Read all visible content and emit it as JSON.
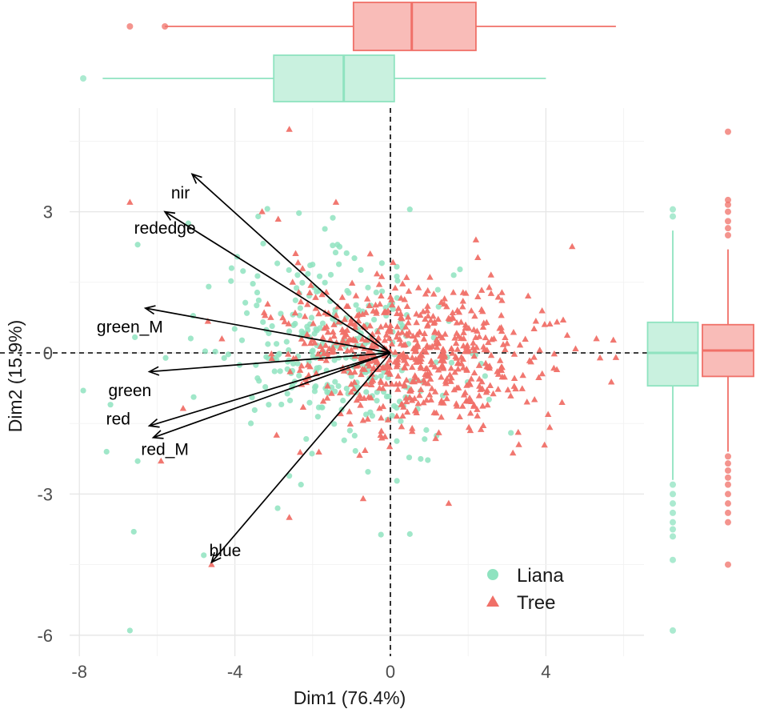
{
  "chart_data": {
    "type": "scatter",
    "title": "",
    "xlabel": "Dim1 (76.4%)",
    "ylabel": "Dim2 (15.9%)",
    "xlim": [
      -8.1,
      6.1
    ],
    "ylim": [
      -6.1,
      5.0
    ],
    "x_ticks": [
      {
        "value": -8,
        "label": "-8"
      },
      {
        "value": -4,
        "label": "-4"
      },
      {
        "value": 0,
        "label": "0"
      },
      {
        "value": 4,
        "label": "4"
      }
    ],
    "y_ticks": [
      {
        "value": 3,
        "label": "3"
      },
      {
        "value": 0,
        "label": "0"
      },
      {
        "value": -3,
        "label": "-3"
      },
      {
        "value": -6,
        "label": "-6"
      }
    ],
    "grid": true,
    "reference_lines": {
      "x": 0,
      "y": 0,
      "style": "dashed"
    },
    "legend": {
      "position": "bottom-right",
      "entries": [
        {
          "name": "Liana",
          "shape": "circle",
          "color": "#8fe3c0"
        },
        {
          "name": "Tree",
          "shape": "triangle",
          "color": "#f07068"
        }
      ]
    },
    "series": [
      {
        "name": "Liana",
        "shape": "circle",
        "color": "#8fe3c0",
        "box_dim1": {
          "min": -7.4,
          "q1": -3.0,
          "median": -1.2,
          "q3": 0.1,
          "max": 4.0,
          "outliers": [
            -7.9
          ]
        },
        "box_dim2": {
          "min": -2.7,
          "q1": -0.7,
          "median": 0.0,
          "q3": 0.65,
          "max": 2.6,
          "outliers": [
            2.9,
            3.05,
            -2.8,
            -3.0,
            -3.2,
            -3.4,
            -3.6,
            -3.75,
            -3.9,
            -4.4,
            -5.9
          ]
        },
        "highlighted_points": [
          {
            "x": -6.5,
            "y": 2.3
          },
          {
            "x": -7.2,
            "y": -1.1
          },
          {
            "x": -7.9,
            "y": -0.8
          },
          {
            "x": -7.3,
            "y": -2.1
          },
          {
            "x": -6.5,
            "y": -2.3
          },
          {
            "x": -6.6,
            "y": -3.8
          },
          {
            "x": -6.7,
            "y": -5.9
          },
          {
            "x": -4.8,
            "y": -4.3
          },
          {
            "x": -3.4,
            "y": 2.9
          },
          {
            "x": 0.5,
            "y": 3.05
          },
          {
            "x": 0.5,
            "y": -3.85
          },
          {
            "x": 3.1,
            "y": -1.7
          },
          {
            "x": -2.3,
            "y": -2.8
          },
          {
            "x": -2.9,
            "y": -3.3
          }
        ]
      },
      {
        "name": "Tree",
        "shape": "triangle",
        "color": "#f07068",
        "box_dim1": {
          "min": -5.8,
          "q1": -0.95,
          "median": 0.55,
          "q3": 2.2,
          "max": 5.8,
          "outliers": [
            -6.7,
            -5.8
          ]
        },
        "box_dim2": {
          "min": -2.1,
          "q1": -0.5,
          "median": 0.05,
          "q3": 0.6,
          "max": 2.2,
          "outliers": [
            3.25,
            3.15,
            3.0,
            2.8,
            2.65,
            2.5,
            -2.2,
            -2.35,
            -2.5,
            -2.65,
            -2.8,
            -3.0,
            -3.2,
            -3.4,
            -3.6,
            -4.5,
            4.7
          ]
        },
        "highlighted_points": [
          {
            "x": -6.7,
            "y": 3.2
          },
          {
            "x": -2.6,
            "y": 4.75
          },
          {
            "x": -1.4,
            "y": 3.2
          },
          {
            "x": -4.6,
            "y": -4.5
          },
          {
            "x": 5.8,
            "y": -0.1
          },
          {
            "x": 5.3,
            "y": 0.3
          },
          {
            "x": 2.2,
            "y": 2.4
          },
          {
            "x": 1.5,
            "y": -3.2
          },
          {
            "x": -5.9,
            "y": -2.3
          },
          {
            "x": -0.7,
            "y": -3.1
          },
          {
            "x": -2.6,
            "y": -3.5
          },
          {
            "x": -3.3,
            "y": 3.0
          }
        ]
      }
    ],
    "variable_loadings": [
      {
        "name": "nir",
        "x": -5.1,
        "y": 3.8
      },
      {
        "name": "rededge",
        "x": -5.8,
        "y": 3.0
      },
      {
        "name": "green_M",
        "x": -6.3,
        "y": 0.95
      },
      {
        "name": "green",
        "x": -6.2,
        "y": -0.4
      },
      {
        "name": "red",
        "x": -6.2,
        "y": -1.55
      },
      {
        "name": "red_M",
        "x": -6.1,
        "y": -1.8
      },
      {
        "name": "blue",
        "x": -4.6,
        "y": -4.45
      }
    ]
  }
}
